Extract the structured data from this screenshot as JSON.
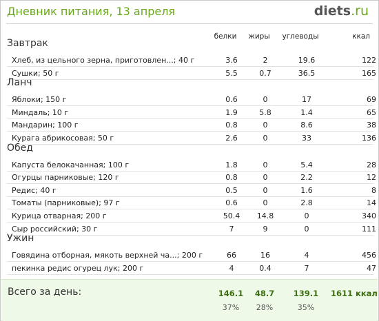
{
  "header": {
    "title": "Дневник питания, 13 апреля",
    "logo_main": "diets",
    "logo_tld": ".ru"
  },
  "columns": {
    "protein": "белки",
    "fat": "жиры",
    "carbs": "углеводы",
    "kcal": "ккал"
  },
  "sections": [
    {
      "title": "Завтрак",
      "items": [
        {
          "name": "Хлеб, из цельного зерна, приготовлен...; 40 г",
          "protein": "3.6",
          "fat": "2",
          "carbs": "19.6",
          "kcal": "122"
        },
        {
          "name": "Сушки; 50 г",
          "protein": "5.5",
          "fat": "0.7",
          "carbs": "36.5",
          "kcal": "165"
        }
      ]
    },
    {
      "title": "Ланч",
      "items": [
        {
          "name": "Яблоки; 150 г",
          "protein": "0.6",
          "fat": "0",
          "carbs": "17",
          "kcal": "69"
        },
        {
          "name": "Миндаль; 10 г",
          "protein": "1.9",
          "fat": "5.8",
          "carbs": "1.4",
          "kcal": "65"
        },
        {
          "name": "Мандарин; 100 г",
          "protein": "0.8",
          "fat": "0",
          "carbs": "8.6",
          "kcal": "38"
        },
        {
          "name": "Курага абрикосовая; 50 г",
          "protein": "2.6",
          "fat": "0",
          "carbs": "33",
          "kcal": "136"
        }
      ]
    },
    {
      "title": "Обед",
      "items": [
        {
          "name": "Капуста белокачанная; 100 г",
          "protein": "1.8",
          "fat": "0",
          "carbs": "5.4",
          "kcal": "28"
        },
        {
          "name": "Огурцы парниковые; 120 г",
          "protein": "0.8",
          "fat": "0",
          "carbs": "2.2",
          "kcal": "12"
        },
        {
          "name": "Редис; 40 г",
          "protein": "0.5",
          "fat": "0",
          "carbs": "1.6",
          "kcal": "8"
        },
        {
          "name": "Томаты (парниковые); 97 г",
          "protein": "0.6",
          "fat": "0",
          "carbs": "2.8",
          "kcal": "14"
        },
        {
          "name": "Курица отварная; 200 г",
          "protein": "50.4",
          "fat": "14.8",
          "carbs": "0",
          "kcal": "340"
        },
        {
          "name": "Сыр российский; 30 г",
          "protein": "7",
          "fat": "9",
          "carbs": "0",
          "kcal": "111"
        }
      ]
    },
    {
      "title": "Ужин",
      "items": [
        {
          "name": "Говядина отборная, мякоть верхней ча...; 200 г",
          "protein": "66",
          "fat": "16",
          "carbs": "4",
          "kcal": "456"
        },
        {
          "name": "пекинка редис огурец  лук; 200 г",
          "protein": "4",
          "fat": "0.4",
          "carbs": "7",
          "kcal": "47"
        }
      ]
    }
  ],
  "totals": {
    "label": "Всего за день:",
    "protein": "146.1",
    "fat": "48.7",
    "carbs": "139.1",
    "kcal": "1611 ккал",
    "protein_pct": "37%",
    "fat_pct": "28%",
    "carbs_pct": "35%"
  }
}
